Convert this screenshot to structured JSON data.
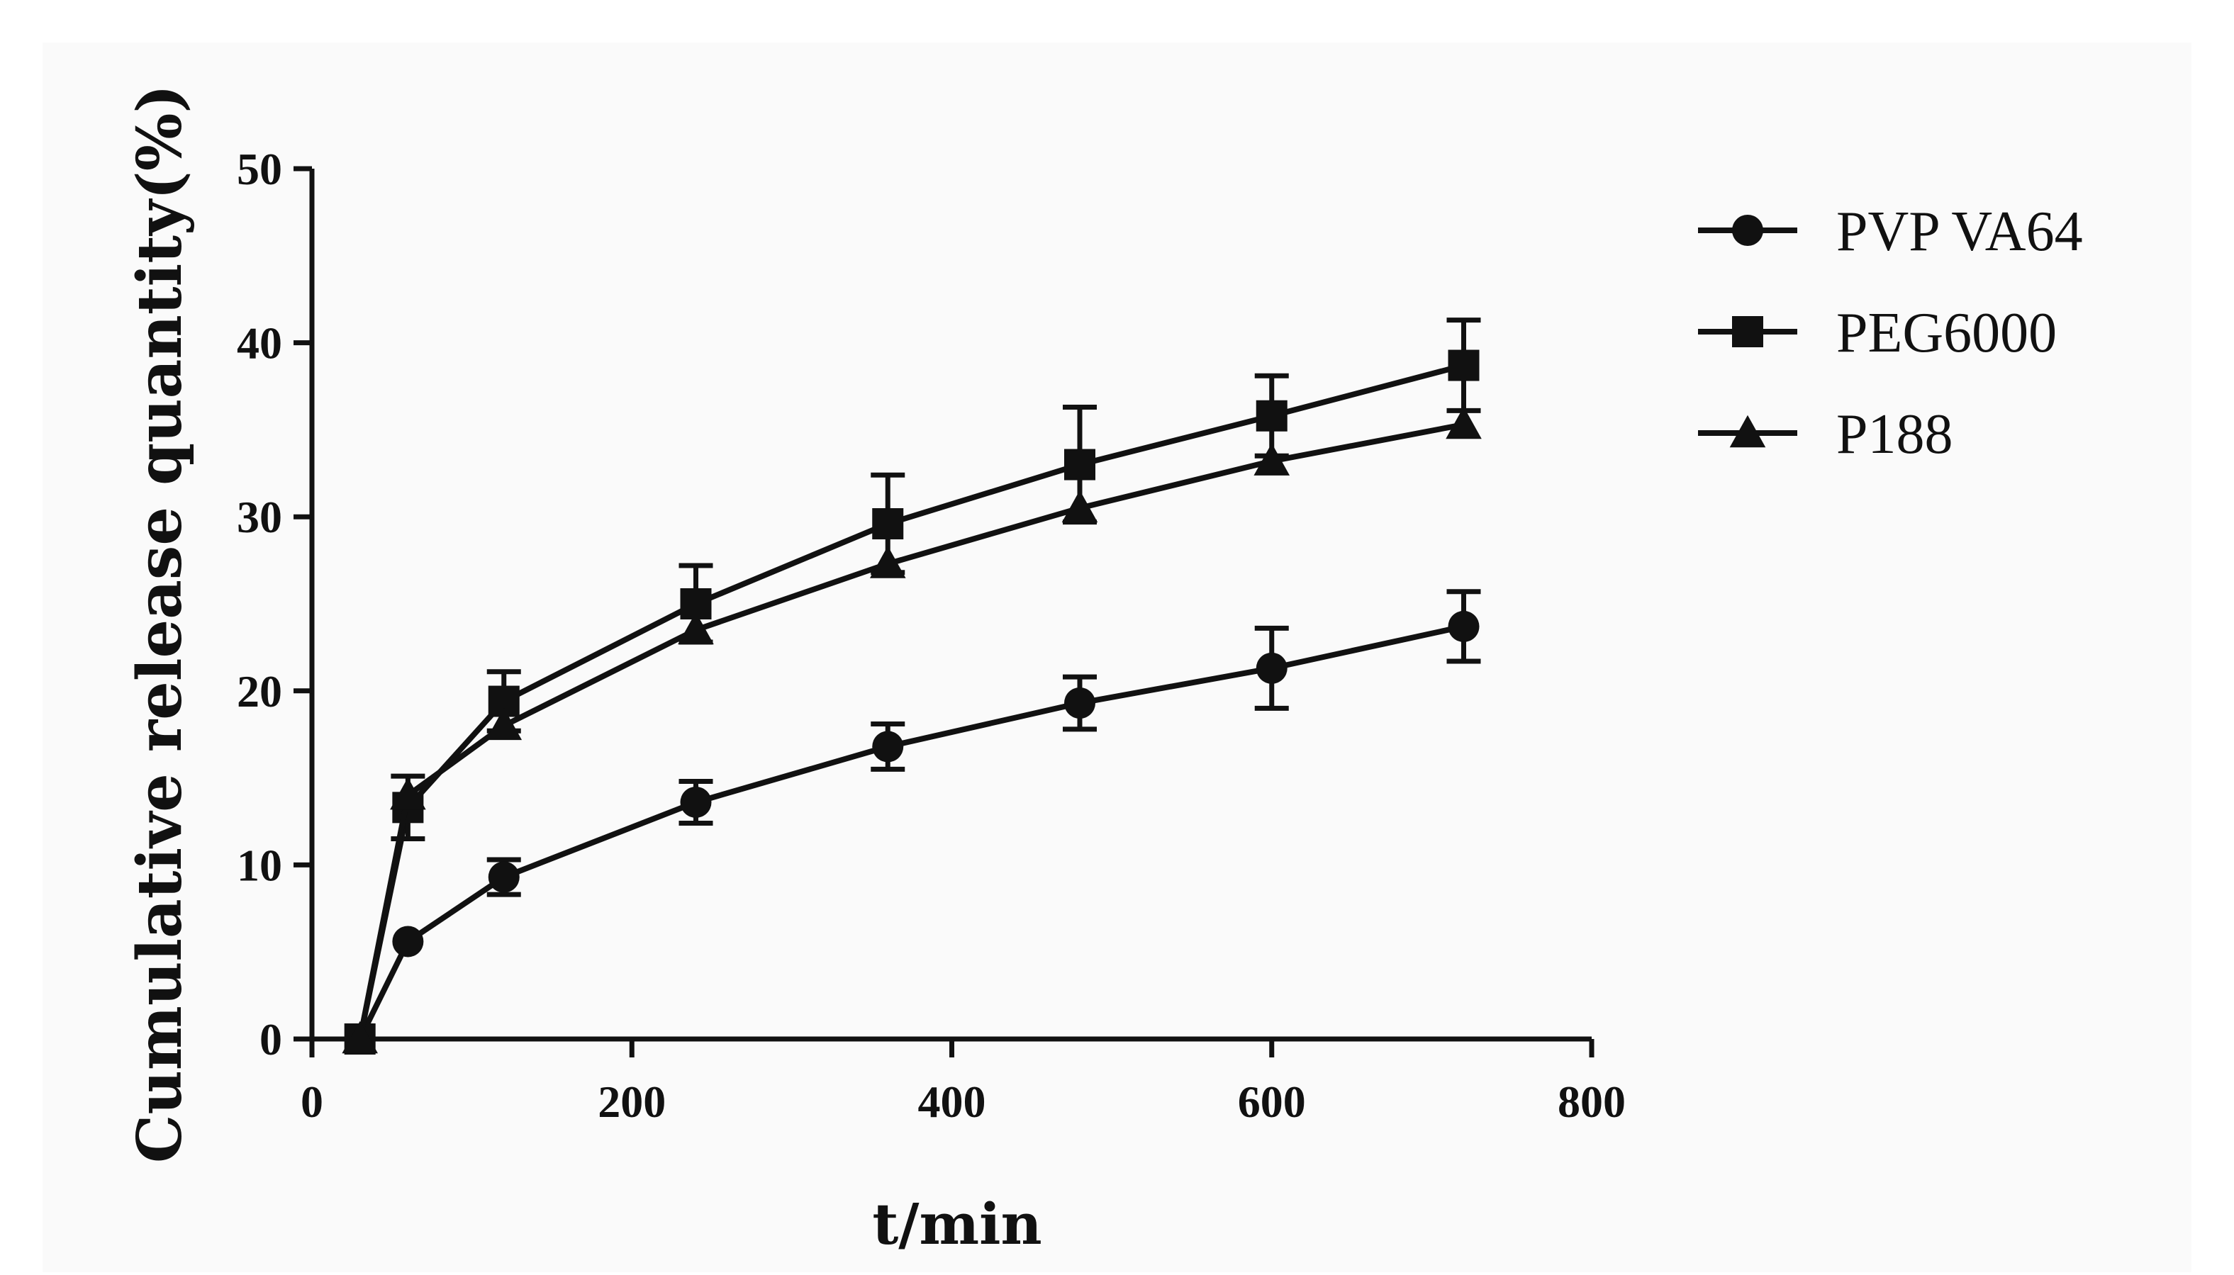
{
  "chart_data": {
    "type": "line",
    "xlabel": "t/min",
    "ylabel": "Cumulative release quantity(%)",
    "xlim": [
      0,
      800
    ],
    "ylim": [
      0,
      50
    ],
    "xticks": [
      0,
      200,
      400,
      600,
      800
    ],
    "yticks": [
      0,
      10,
      20,
      30,
      40,
      50
    ],
    "legend_position": "top-right",
    "colors": {
      "line": "#111111",
      "background": "#fafafa"
    },
    "series": [
      {
        "name": "PVP VA64",
        "marker": "circle",
        "x": [
          30,
          60,
          120,
          240,
          360,
          480,
          600,
          720
        ],
        "y": [
          0,
          5.6,
          9.3,
          13.6,
          16.8,
          19.3,
          21.3,
          23.7
        ],
        "err": [
          0,
          0,
          1.0,
          1.2,
          1.3,
          1.5,
          2.3,
          2.0
        ]
      },
      {
        "name": "PEG6000",
        "marker": "square",
        "x": [
          30,
          60,
          120,
          240,
          360,
          480,
          600,
          720
        ],
        "y": [
          0,
          13.3,
          19.4,
          25.0,
          29.6,
          33.0,
          35.8,
          38.7
        ],
        "err": [
          0,
          1.8,
          1.7,
          2.2,
          2.8,
          3.3,
          2.3,
          2.6
        ]
      },
      {
        "name": "P188",
        "marker": "triangle",
        "x": [
          30,
          60,
          120,
          240,
          360,
          480,
          600,
          720
        ],
        "y": [
          0,
          14.0,
          18.0,
          23.5,
          27.3,
          30.5,
          33.2,
          35.3
        ],
        "err": [
          0,
          0,
          0,
          0,
          0,
          0,
          0,
          0
        ]
      }
    ]
  }
}
